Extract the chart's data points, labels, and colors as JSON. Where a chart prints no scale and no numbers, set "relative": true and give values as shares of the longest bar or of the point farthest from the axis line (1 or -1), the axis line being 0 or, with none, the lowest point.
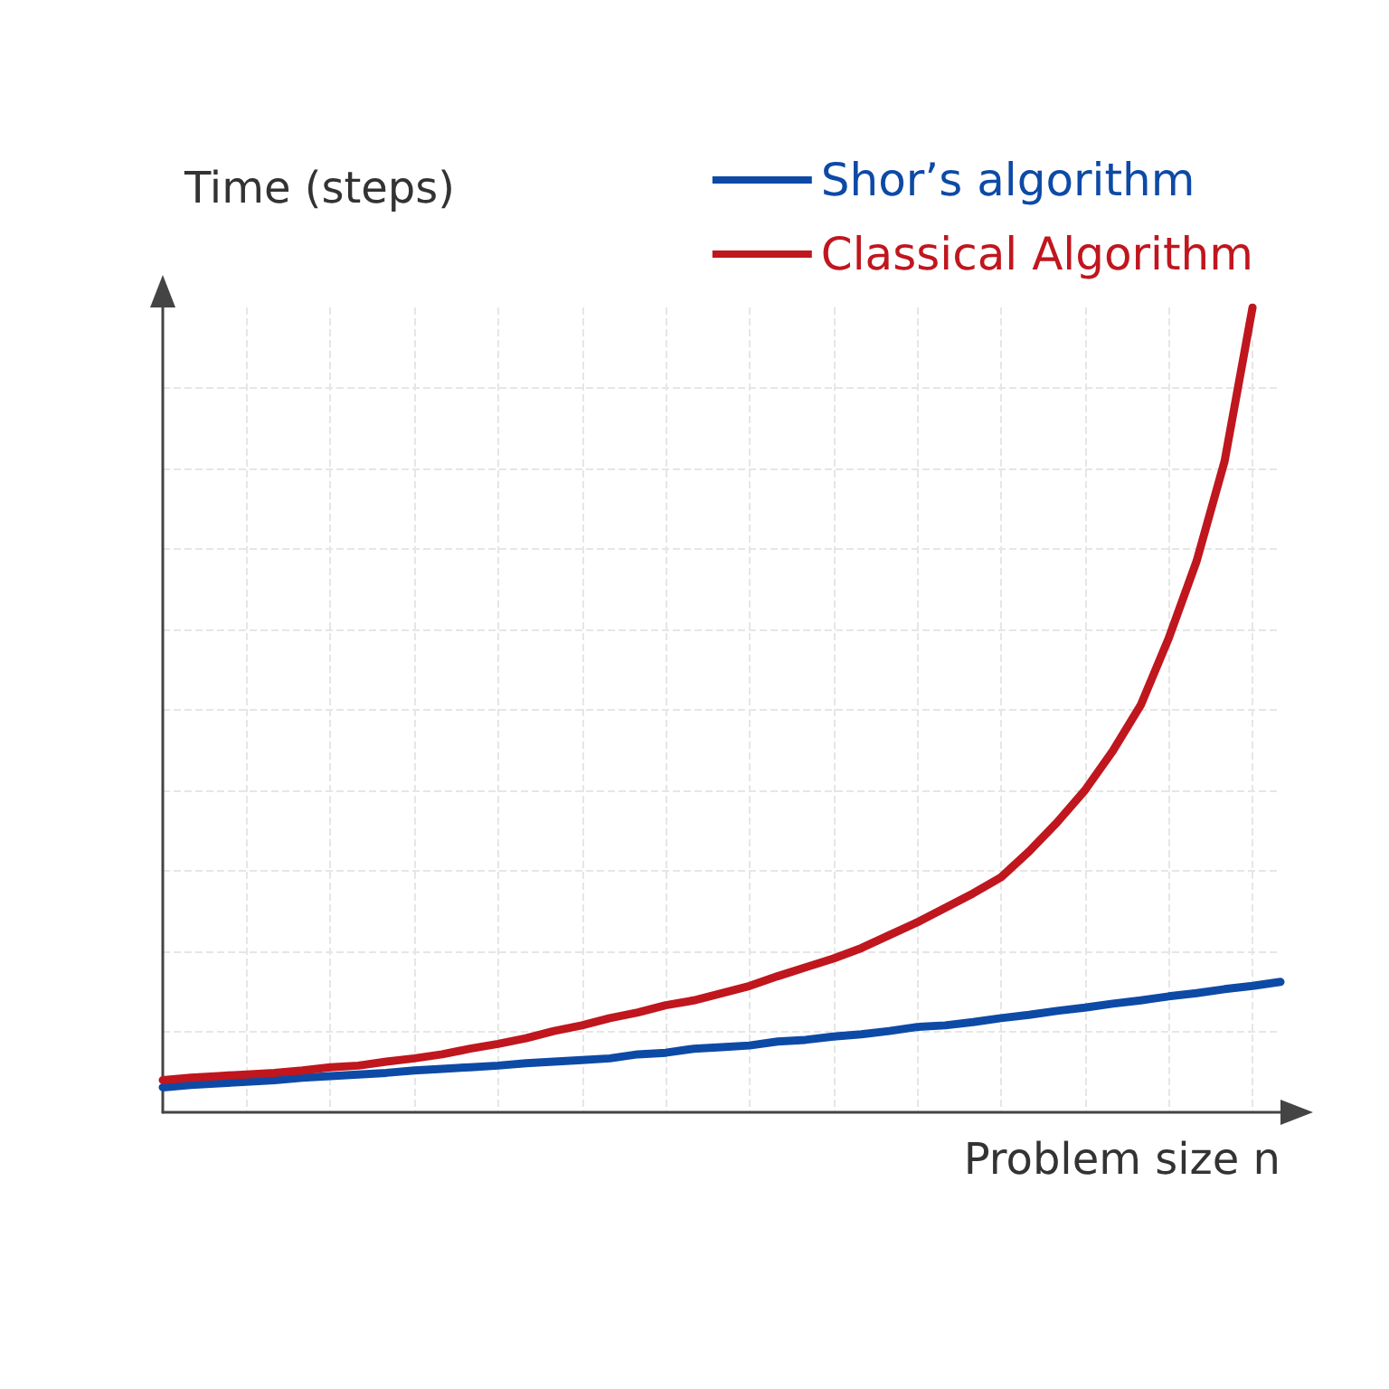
{
  "chart_data": {
    "type": "line",
    "relative": true,
    "xlabel": "Problem size n",
    "annotations": [
      "Time (steps)"
    ],
    "grid": true,
    "legend": "top right",
    "marker": "none",
    "line_style": "solid",
    "categories": [
      null,
      null,
      null,
      null,
      null,
      null,
      null,
      null,
      null,
      null,
      null,
      null,
      null,
      null,
      null,
      null,
      null,
      null,
      null,
      null,
      null,
      null,
      null,
      null,
      null,
      null,
      null,
      null,
      null,
      null,
      null,
      null,
      null,
      null,
      null,
      null,
      null,
      null,
      null,
      null,
      null
    ],
    "series": [
      {
        "name": "Shor’s algorithm",
        "color": "#0d4aa6",
        "values": [
          0.031,
          0.034,
          0.036,
          0.038,
          0.04,
          0.043,
          0.045,
          0.047,
          0.049,
          0.052,
          0.054,
          0.056,
          0.058,
          0.061,
          0.063,
          0.065,
          0.067,
          0.072,
          0.074,
          0.079,
          0.081,
          0.083,
          0.088,
          0.09,
          0.094,
          0.097,
          0.101,
          0.106,
          0.108,
          0.112,
          0.117,
          0.121,
          0.126,
          0.13,
          0.135,
          0.139,
          0.144,
          0.148,
          0.153,
          0.157,
          0.162
        ]
      },
      {
        "name": "Classical Algorithm",
        "color": "#c0161e",
        "values": [
          0.04,
          0.043,
          0.045,
          0.047,
          0.049,
          0.052,
          0.056,
          0.058,
          0.063,
          0.067,
          0.072,
          0.079,
          0.085,
          0.092,
          0.101,
          0.108,
          0.117,
          0.124,
          0.133,
          0.139,
          0.148,
          0.157,
          0.169,
          0.18,
          0.191,
          0.204,
          0.22,
          0.236,
          0.254,
          0.272,
          0.292,
          0.324,
          0.36,
          0.4,
          0.449,
          0.506,
          0.589,
          0.685,
          0.809,
          1,
          null
        ]
      }
    ]
  }
}
